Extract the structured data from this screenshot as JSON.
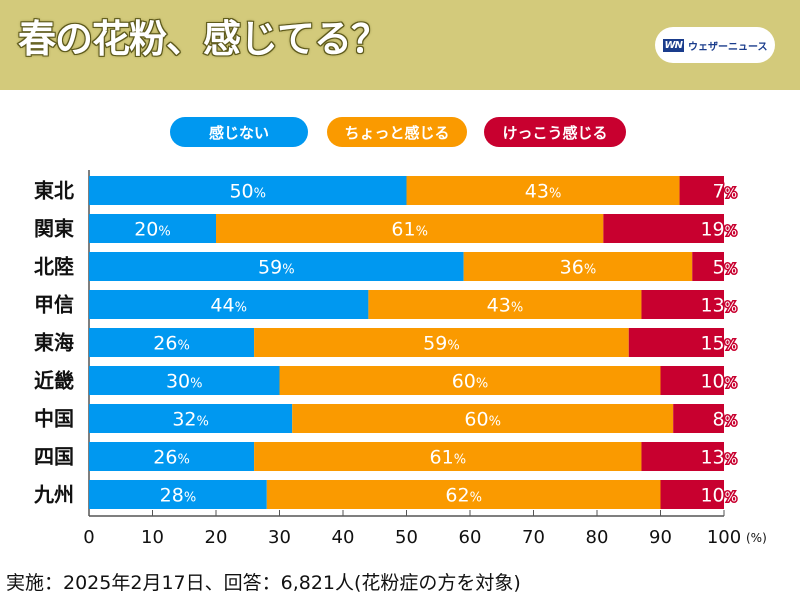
{
  "header": {
    "title": "春の花粉、感じてる？",
    "brand": {
      "logo_text": "WN",
      "name": "ウェザーニュース"
    }
  },
  "footer": {
    "note": "実施：2025年2月17日、回答：6,821人(花粉症の方を対象)"
  },
  "chart_data": {
    "type": "bar",
    "orientation": "horizontal",
    "stacked": true,
    "title": "春の花粉、感じてる？",
    "xlabel": "(%)",
    "ylabel": "",
    "xlim": [
      0,
      100
    ],
    "x_ticks": [
      0,
      10,
      20,
      30,
      40,
      50,
      60,
      70,
      80,
      90,
      100
    ],
    "x_tick_suffix": "(%)",
    "grid": false,
    "legend": "top-center",
    "categories": [
      "東北",
      "関東",
      "北陸",
      "甲信",
      "東海",
      "近畿",
      "中国",
      "四国",
      "九州"
    ],
    "series": [
      {
        "name": "感じない",
        "color": "#0098f0",
        "values": [
          50,
          20,
          59,
          44,
          26,
          30,
          32,
          26,
          28
        ]
      },
      {
        "name": "ちょっと感じる",
        "color": "#fa9a00",
        "values": [
          43,
          61,
          36,
          43,
          59,
          60,
          60,
          61,
          62
        ]
      },
      {
        "name": "けっこう感じる",
        "color": "#c8002f",
        "values": [
          7,
          19,
          5,
          13,
          15,
          10,
          8,
          13,
          10
        ]
      }
    ],
    "value_suffix": "%"
  }
}
